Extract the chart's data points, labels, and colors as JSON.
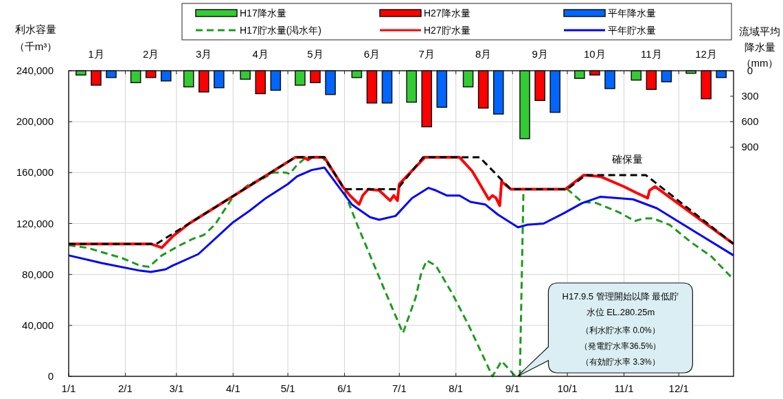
{
  "chart_data": {
    "type": "line",
    "xlim": [
      "--01-01",
      "--12-31"
    ],
    "xticks": [
      {
        "value": "--01-01",
        "label": "1/1"
      },
      {
        "value": "--02-01",
        "label": "2/1"
      },
      {
        "value": "--03-01",
        "label": "3/1"
      },
      {
        "value": "--04-01",
        "label": "4/1"
      },
      {
        "value": "--05-01",
        "label": "5/1"
      },
      {
        "value": "--06-01",
        "label": "6/1"
      },
      {
        "value": "--07-01",
        "label": "7/1"
      },
      {
        "value": "--08-01",
        "label": "8/1"
      },
      {
        "value": "--09-01",
        "label": "9/1"
      },
      {
        "value": "--10-01",
        "label": "10/1"
      },
      {
        "value": "--11-01",
        "label": "11/1"
      },
      {
        "value": "--12-01",
        "label": "12/1"
      }
    ],
    "x2lim": [
      "--01-01",
      "--12-31"
    ],
    "x2ticks": [
      {
        "value": "--01-16",
        "label": "1月"
      },
      {
        "value": "--02-15",
        "label": "2月"
      },
      {
        "value": "--03-16",
        "label": "3月"
      },
      {
        "value": "--04-16",
        "label": "4月"
      },
      {
        "value": "--05-16",
        "label": "5月"
      },
      {
        "value": "--06-16",
        "label": "6月"
      },
      {
        "value": "--07-16",
        "label": "7月"
      },
      {
        "value": "--08-16",
        "label": "8月"
      },
      {
        "value": "--09-16",
        "label": "9月"
      },
      {
        "value": "--10-16",
        "label": "10月"
      },
      {
        "value": "--11-16",
        "label": "11月"
      },
      {
        "value": "--12-16",
        "label": "12月"
      },
      {
        "value": "--02-01",
        "label": null
      },
      {
        "value": "--03-01",
        "label": null
      },
      {
        "value": "--04-01",
        "label": null
      },
      {
        "value": "--05-01",
        "label": null
      },
      {
        "value": "--06-01",
        "label": null
      },
      {
        "value": "--07-01",
        "label": null
      },
      {
        "value": "--08-01",
        "label": null
      },
      {
        "value": "--09-01",
        "label": null
      },
      {
        "value": "--10-01",
        "label": null
      },
      {
        "value": "--11-01",
        "label": null
      },
      {
        "value": "--12-01",
        "label": null
      }
    ],
    "ylim": [
      0,
      240000
    ],
    "yticks": [
      0,
      {
        "value": 40000,
        "label": "40,000"
      },
      {
        "value": 80000,
        "label": "80,000"
      },
      {
        "value": 120000,
        "label": "120,000"
      },
      {
        "value": 160000,
        "label": "160,000"
      },
      {
        "value": 200000,
        "label": "200,000"
      },
      {
        "value": 240000,
        "label": "240,000"
      }
    ],
    "y2lim": [
      3600,
      0
    ],
    "y2ticks": [
      0,
      300,
      600,
      900
    ],
    "ylabel": "利水容量（千m³）",
    "y2label": "流域平均降水量（mm）",
    "grid": true,
    "legend": "top",
    "series": [
      {
        "name": "H17降水量",
        "type": "bar",
        "axis": "y2",
        "color": "#33cc33",
        "x": [
          "--01-16",
          "--02-15",
          "--03-16",
          "--04-16",
          "--05-16",
          "--06-16",
          "--07-16",
          "--08-16",
          "--09-16",
          "--10-16",
          "--11-16",
          "--12-16"
        ],
        "values": [
          50,
          140,
          190,
          100,
          170,
          80,
          370,
          190,
          800,
          90,
          110,
          30
        ]
      },
      {
        "name": "H27降水量",
        "type": "bar",
        "axis": "y2",
        "color": "#ff0000",
        "x": [
          "--01-16",
          "--02-15",
          "--03-16",
          "--04-16",
          "--05-16",
          "--06-16",
          "--07-16",
          "--08-16",
          "--09-16",
          "--10-16",
          "--11-16",
          "--12-16"
        ],
        "values": [
          170,
          80,
          250,
          270,
          140,
          380,
          660,
          440,
          350,
          50,
          220,
          330
        ]
      },
      {
        "name": "平年降水量",
        "type": "bar",
        "axis": "y2",
        "color": "#0066ff",
        "x": [
          "--01-16",
          "--02-15",
          "--03-16",
          "--04-16",
          "--05-16",
          "--06-16",
          "--07-16",
          "--08-16",
          "--09-16",
          "--10-16",
          "--11-16",
          "--12-16"
        ],
        "values": [
          80,
          120,
          200,
          230,
          280,
          380,
          430,
          510,
          490,
          210,
          130,
          80
        ]
      },
      {
        "name": "H17貯水量(渇水年)",
        "line_style": "dashed",
        "color": "#1a9c1a",
        "x": [
          "--01-01",
          "--01-11",
          "--01-30",
          "--02-09",
          "--02-14",
          "--02-21",
          "--03-03",
          "--03-10",
          "--03-16",
          "--03-22",
          "--04-01",
          "--04-10",
          "--04-17",
          "--04-23",
          "--04-30",
          "--05-02",
          "--05-06",
          "--05-11",
          "--05-20",
          "--05-30",
          "--06-08",
          "--06-22",
          "--07-03",
          "--07-10",
          "--07-13",
          "--07-16",
          "--07-21",
          "--07-30",
          "--08-08",
          "--08-21",
          "--08-26",
          "--09-02",
          "--09-05",
          "--09-07",
          "--10-01",
          "--10-09",
          "--10-17",
          "--10-29",
          "--11-07",
          "--11-12",
          "--11-17",
          "--11-26",
          "--12-08",
          "--12-19",
          "--12-31"
        ],
        "values": [
          103000,
          101000,
          93000,
          87000,
          86000,
          95000,
          103000,
          108000,
          111000,
          119000,
          141000,
          151000,
          155000,
          160000,
          160000,
          159000,
          166000,
          172000,
          172000,
          152000,
          119000,
          71000,
          34000,
          62000,
          81000,
          91000,
          87000,
          65000,
          40000,
          0,
          12000,
          1000,
          0,
          147000,
          147000,
          137000,
          136000,
          129000,
          122000,
          124000,
          124000,
          119000,
          105000,
          94000,
          76000
        ]
      },
      {
        "name": "H27貯水量",
        "line_style": "solid",
        "color": "#ff0000",
        "x": [
          "--01-01",
          "--02-15",
          "--02-21",
          "--02-27",
          "--03-08",
          "--05-05",
          "--05-10",
          "--05-12",
          "--05-14",
          "--05-21",
          "--05-31",
          "--06-04",
          "--06-09",
          "--06-11",
          "--06-14",
          "--06-20",
          "--06-26",
          "--06-28",
          "--06-30",
          "--07-01",
          "--07-15",
          "--08-03",
          "--08-10",
          "--08-19",
          "--08-21",
          "--08-23",
          "--08-25",
          "--08-26",
          "--08-31",
          "--09-30",
          "--10-10",
          "--10-19",
          "--11-01",
          "--11-08",
          "--11-14",
          "--11-15",
          "--11-18",
          "--12-31"
        ],
        "values": [
          104000,
          104000,
          101000,
          110000,
          120000,
          172000,
          172000,
          170000,
          172000,
          172000,
          149000,
          142000,
          135000,
          142000,
          147000,
          146000,
          138000,
          142000,
          138000,
          151000,
          172000,
          172000,
          161000,
          139000,
          142000,
          140000,
          134000,
          153000,
          147000,
          147000,
          158000,
          157000,
          149000,
          144000,
          140000,
          146000,
          149000,
          104000
        ]
      },
      {
        "name": "平年貯水量",
        "line_style": "solid",
        "color": "#0000ff",
        "x": [
          "--01-01",
          "--01-19",
          "--02-09",
          "--02-15",
          "--02-23",
          "--02-27",
          "--03-13",
          "--04-01",
          "--04-10",
          "--04-19",
          "--05-01",
          "--05-06",
          "--05-14",
          "--05-21",
          "--06-05",
          "--06-15",
          "--06-20",
          "--06-29",
          "--07-08",
          "--07-17",
          "--07-21",
          "--07-27",
          "--08-03",
          "--08-09",
          "--08-17",
          "--08-24",
          "--09-04",
          "--09-09",
          "--09-18",
          "--09-29",
          "--10-09",
          "--10-19",
          "--11-06",
          "--11-19",
          "--12-31"
        ],
        "values": [
          95000,
          89000,
          83000,
          82000,
          84000,
          87000,
          96000,
          121000,
          130000,
          140000,
          151000,
          157000,
          162000,
          164000,
          135000,
          125000,
          123000,
          126000,
          140000,
          148000,
          146000,
          142000,
          142000,
          137000,
          135000,
          127000,
          117000,
          119000,
          120000,
          128000,
          136000,
          141000,
          139000,
          132000,
          95000
        ]
      },
      {
        "line_style": "dashed",
        "color": "#000000",
        "x": [
          "--01-01",
          "--02-18",
          "--05-05",
          "--05-21",
          "--06-01",
          "--06-30",
          "--07-14",
          "--08-14",
          "--08-31",
          "--10-01",
          "--10-11",
          "--11-13",
          "--12-31"
        ],
        "values": [
          104000,
          104000,
          172000,
          172000,
          147000,
          147000,
          172000,
          172000,
          147000,
          147000,
          158000,
          158000,
          104000
        ]
      }
    ],
    "annotations": [
      "確保量",
      "H17.9.5 管理開始以降 最低貯水位 EL.280.25m（利水貯水率  0.0%）（発電貯水率36.5%）（有効貯水率  3.3%）"
    ]
  }
}
